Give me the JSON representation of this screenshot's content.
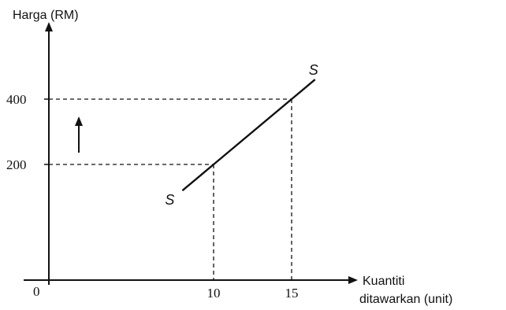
{
  "chart_data": {
    "type": "line",
    "title": "",
    "ylabel": "Harga (RM)",
    "xlabel_line1": "Kuantiti",
    "xlabel_line2": "ditawarkan (unit)",
    "origin_label": "0",
    "x_ticks": [
      "10",
      "15"
    ],
    "y_ticks": [
      "200",
      "400"
    ],
    "curve_label": "S",
    "grid": false,
    "series": [
      {
        "x": [
          8,
          10,
          15,
          16.5
        ],
        "y": [
          120,
          200,
          400,
          460
        ]
      }
    ],
    "reference_points": [
      {
        "x": 10,
        "y": 200
      },
      {
        "x": 15,
        "y": 400
      }
    ],
    "annotation": "up-arrow",
    "colors": {
      "line": "#111111",
      "background": "#ffffff"
    }
  }
}
